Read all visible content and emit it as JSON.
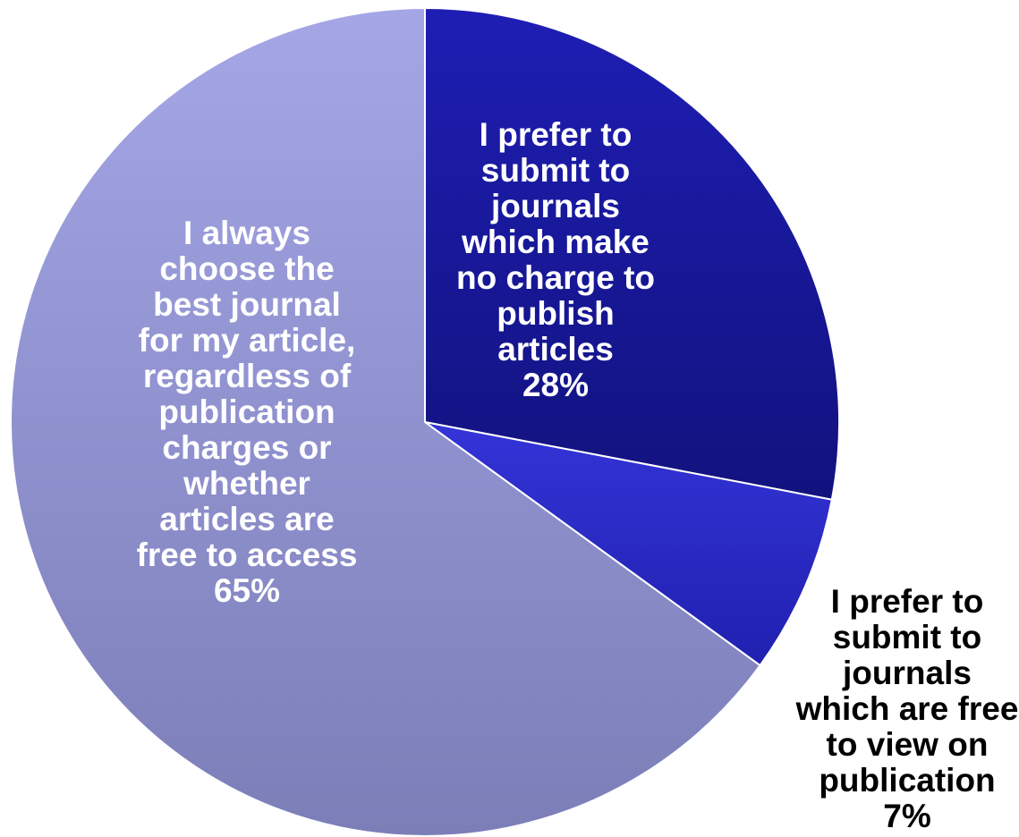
{
  "chart_data": {
    "type": "pie",
    "start_angle_deg": 0,
    "direction": "clockwise",
    "slices": [
      {
        "label_lines": [
          "I prefer to",
          "submit to",
          "journals",
          "which make",
          "no charge to",
          "publish",
          "articles"
        ],
        "value": 28,
        "value_label": "28%",
        "color": "#1a1aa0",
        "label_color": "#ffffff",
        "label_position": "inside"
      },
      {
        "label_lines": [
          "I prefer to",
          "submit to",
          "journals",
          "which are free",
          "to view on",
          "publication"
        ],
        "value": 7,
        "value_label": "7%",
        "color": "#2727c6",
        "label_color": "#000000",
        "label_position": "outside"
      },
      {
        "label_lines": [
          "I always",
          "choose the",
          "best journal",
          "for my article,",
          "regardless of",
          "publication",
          "charges or",
          "whether",
          "articles are",
          "free to access"
        ],
        "value": 65,
        "value_label": "65%",
        "color": "#8f91cf",
        "label_color": "#ffffff",
        "label_position": "inside"
      }
    ]
  }
}
